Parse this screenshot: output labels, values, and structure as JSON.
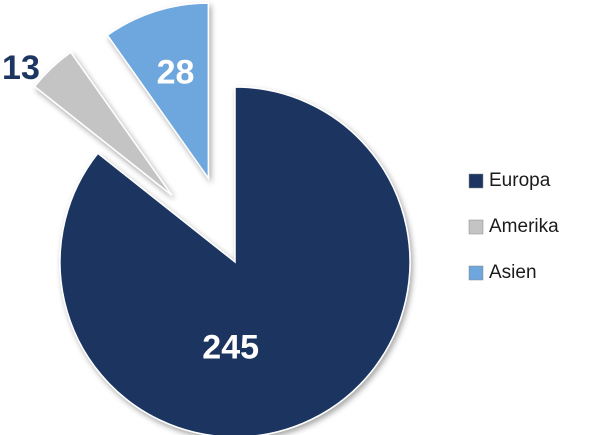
{
  "chart_data": {
    "type": "pie",
    "categories": [
      "Europa",
      "Amerika",
      "Asien"
    ],
    "values": [
      245,
      13,
      28
    ],
    "colors": [
      "#1c3561",
      "#c4c4c4",
      "#6ea6de"
    ],
    "explode": [
      0,
      1,
      1
    ],
    "legend": "right"
  }
}
